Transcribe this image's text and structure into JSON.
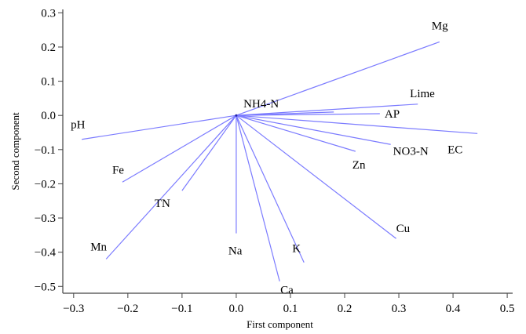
{
  "chart_data": {
    "type": "biplot",
    "xlabel": "First component",
    "ylabel": "Second component",
    "xlim": [
      -0.32,
      0.51
    ],
    "ylim": [
      -0.52,
      0.31
    ],
    "xticks": [
      -0.3,
      -0.2,
      -0.1,
      0.0,
      0.1,
      0.2,
      0.3,
      0.4,
      0.5
    ],
    "yticks": [
      0.3,
      0.2,
      0.1,
      0.0,
      -0.1,
      -0.2,
      -0.3,
      -0.4,
      -0.5
    ],
    "xtick_labels": [
      "−0.3",
      "−0.2",
      "−0.1",
      "0.0",
      "0.1",
      "0.2",
      "0.3",
      "0.4",
      "0.5"
    ],
    "ytick_labels": [
      "0.3",
      "0.2",
      "0.1",
      "0.0",
      "−0.1",
      "−0.2",
      "−0.3",
      "−0.4",
      "−0.5"
    ],
    "grid": false,
    "vector_color": "#7b7bff",
    "vectors": [
      {
        "label": "Mg",
        "x": 0.375,
        "y": 0.215
      },
      {
        "label": "Lime",
        "x": 0.335,
        "y": 0.033
      },
      {
        "label": "AP",
        "x": 0.265,
        "y": 0.005
      },
      {
        "label": "NH4-N",
        "x": 0.18,
        "y": 0.01
      },
      {
        "label": "EC",
        "x": 0.445,
        "y": -0.053
      },
      {
        "label": "NO3-N",
        "x": 0.285,
        "y": -0.085
      },
      {
        "label": "Zn",
        "x": 0.22,
        "y": -0.105
      },
      {
        "label": "Cu",
        "x": 0.295,
        "y": -0.36
      },
      {
        "label": "K",
        "x": 0.125,
        "y": -0.43
      },
      {
        "label": "Ca",
        "x": 0.08,
        "y": -0.485
      },
      {
        "label": "Na",
        "x": 0.0,
        "y": -0.345
      },
      {
        "label": "TN",
        "x": -0.1,
        "y": -0.22
      },
      {
        "label": "Fe",
        "x": -0.21,
        "y": -0.195
      },
      {
        "label": "Mn",
        "x": -0.24,
        "y": -0.42
      },
      {
        "label": "pH",
        "x": -0.285,
        "y": -0.07
      }
    ]
  }
}
